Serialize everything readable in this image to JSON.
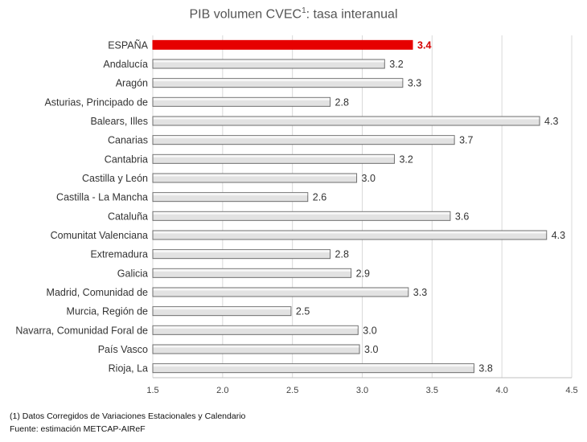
{
  "chart_data": {
    "type": "bar",
    "orientation": "horizontal",
    "title_main": "PIB volumen CVEC",
    "title_sup": "1",
    "title_rest": ": tasa interanual",
    "categories": [
      "ESPAÑA",
      "Andalucía",
      "Aragón",
      "Asturias, Principado de",
      "Balears, Illes",
      "Canarias",
      "Cantabria",
      "Castilla y León",
      "Castilla - La Mancha",
      "Cataluña",
      "Comunitat Valenciana",
      "Extremadura",
      "Galicia",
      "Madrid, Comunidad de",
      "Murcia, Región de",
      "Navarra, Comunidad Foral de",
      "País Vasco",
      "Rioja, La"
    ],
    "values": [
      3.36,
      3.16,
      3.29,
      2.77,
      4.27,
      3.66,
      3.23,
      2.96,
      2.61,
      3.63,
      4.32,
      2.77,
      2.92,
      3.33,
      2.49,
      2.97,
      2.98,
      3.8
    ],
    "labels": [
      "3.4",
      "3.2",
      "3.3",
      "2.8",
      "4.3",
      "3.7",
      "3.2",
      "3.0",
      "2.6",
      "3.6",
      "4.3",
      "2.8",
      "2.9",
      "3.3",
      "2.5",
      "3.0",
      "3.0",
      "3.8"
    ],
    "highlight_index": 0,
    "xlim": [
      1.5,
      4.5
    ],
    "xticks": [
      1.5,
      2.0,
      2.5,
      3.0,
      3.5,
      4.0,
      4.5
    ],
    "xtick_labels": [
      "1.5",
      "2.0",
      "2.5",
      "3.0",
      "3.5",
      "4.0",
      "4.5"
    ],
    "grid": "vertical",
    "colors": {
      "bar_fill": "#e2e2e2",
      "bar_stroke": "#6d6d6d",
      "highlight_fill": "#e60000",
      "highlight_text": "#d40000",
      "grid": "#d9d9d9",
      "axis": "#bfbfbf"
    }
  },
  "footnote": "(1) Datos Corregidos de Variaciones Estacionales y Calendario",
  "source": "Fuente: estimación METCAP-AIReF"
}
